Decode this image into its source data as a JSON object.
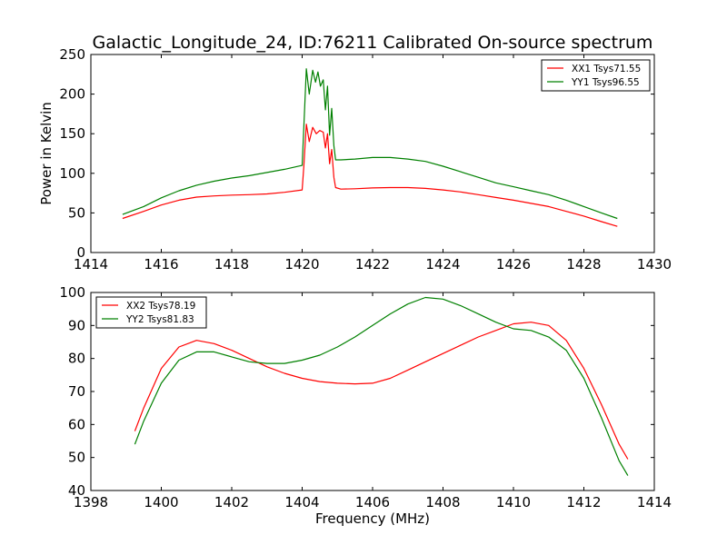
{
  "figure": {
    "title": "Galactic_Longitude_24, ID:76211 Calibrated On-source spectrum",
    "ylabel": "Power in Kelvin",
    "xlabel": "Frequency (MHz)"
  },
  "chart_data": [
    {
      "type": "line",
      "xlabel": "",
      "ylabel": "Power in Kelvin",
      "xlim": [
        1414,
        1430
      ],
      "ylim": [
        0,
        250
      ],
      "xticks": [
        1414,
        1416,
        1418,
        1420,
        1422,
        1424,
        1426,
        1428,
        1430
      ],
      "yticks": [
        0,
        50,
        100,
        150,
        200,
        250
      ],
      "legend_position": "top-right",
      "series": [
        {
          "name": "XX1 Tsys71.55",
          "color": "#ff0000",
          "x": [
            1414.9,
            1415.5,
            1416.0,
            1416.5,
            1417.0,
            1417.5,
            1418.0,
            1418.5,
            1419.0,
            1419.5,
            1420.0,
            1420.05,
            1420.12,
            1420.2,
            1420.3,
            1420.4,
            1420.5,
            1420.6,
            1420.66,
            1420.72,
            1420.78,
            1420.84,
            1420.9,
            1420.95,
            1421.1,
            1421.5,
            1422.0,
            1422.5,
            1423.0,
            1423.5,
            1424.0,
            1424.5,
            1425.0,
            1425.5,
            1426.0,
            1426.5,
            1427.0,
            1427.5,
            1428.0,
            1428.5,
            1428.95
          ],
          "y": [
            43,
            52,
            60,
            66,
            70,
            71.5,
            72.5,
            73,
            74,
            76,
            79,
            110,
            162,
            140,
            158,
            150,
            154,
            152,
            132,
            150,
            112,
            130,
            95,
            82,
            80,
            80.5,
            81.5,
            82,
            82,
            81,
            79,
            76.5,
            73,
            69.5,
            66,
            62,
            58,
            52,
            46,
            39,
            33
          ]
        },
        {
          "name": "YY1 Tsys96.55",
          "color": "#008000",
          "x": [
            1414.9,
            1415.5,
            1416.0,
            1416.5,
            1417.0,
            1417.5,
            1418.0,
            1418.5,
            1419.0,
            1419.5,
            1420.0,
            1420.05,
            1420.12,
            1420.2,
            1420.3,
            1420.38,
            1420.45,
            1420.52,
            1420.6,
            1420.66,
            1420.72,
            1420.78,
            1420.84,
            1420.9,
            1420.95,
            1421.1,
            1421.5,
            1422.0,
            1422.5,
            1423.0,
            1423.5,
            1424.0,
            1424.5,
            1425.0,
            1425.5,
            1426.0,
            1426.5,
            1427.0,
            1427.5,
            1428.0,
            1428.5,
            1428.95
          ],
          "y": [
            48,
            58,
            69,
            78,
            85,
            90,
            94,
            97,
            101,
            105,
            110,
            160,
            232,
            200,
            230,
            215,
            228,
            210,
            218,
            180,
            210,
            148,
            182,
            135,
            117,
            117,
            118,
            120,
            120,
            118,
            115,
            109,
            102,
            95,
            88,
            83,
            78,
            73,
            66,
            58,
            50,
            43
          ]
        }
      ]
    },
    {
      "type": "line",
      "xlabel": "Frequency (MHz)",
      "ylabel": "",
      "xlim": [
        1398,
        1414
      ],
      "ylim": [
        40,
        100
      ],
      "xticks": [
        1398,
        1400,
        1402,
        1404,
        1406,
        1408,
        1410,
        1412,
        1414
      ],
      "yticks": [
        40,
        50,
        60,
        70,
        80,
        90,
        100
      ],
      "legend_position": "top-left",
      "series": [
        {
          "name": "XX2 Tsys78.19",
          "color": "#ff0000",
          "x": [
            1399.25,
            1399.5,
            1400.0,
            1400.5,
            1401.0,
            1401.5,
            1402.0,
            1402.5,
            1403.0,
            1403.5,
            1404.0,
            1404.5,
            1405.0,
            1405.5,
            1406.0,
            1406.5,
            1407.0,
            1407.5,
            1408.0,
            1408.5,
            1409.0,
            1409.5,
            1410.0,
            1410.5,
            1411.0,
            1411.5,
            1412.0,
            1412.5,
            1413.0,
            1413.25
          ],
          "y": [
            58,
            65,
            77,
            83.5,
            85.5,
            84.5,
            82.5,
            80,
            77.5,
            75.5,
            74,
            73,
            72.5,
            72.3,
            72.5,
            74,
            76.5,
            79,
            81.5,
            84,
            86.5,
            88.5,
            90.5,
            91,
            90,
            85.5,
            77,
            66,
            54,
            49.5
          ]
        },
        {
          "name": "YY2 Tsys81.83",
          "color": "#008000",
          "x": [
            1399.25,
            1399.5,
            1400.0,
            1400.5,
            1401.0,
            1401.5,
            1402.0,
            1402.5,
            1403.0,
            1403.5,
            1404.0,
            1404.5,
            1405.0,
            1405.5,
            1406.0,
            1406.5,
            1407.0,
            1407.5,
            1408.0,
            1408.5,
            1409.0,
            1409.5,
            1410.0,
            1410.5,
            1411.0,
            1411.5,
            1412.0,
            1412.5,
            1413.0,
            1413.25
          ],
          "y": [
            54,
            61,
            72.5,
            79.5,
            82,
            82,
            80.5,
            79,
            78.5,
            78.5,
            79.5,
            81,
            83.5,
            86.5,
            90,
            93.5,
            96.5,
            98.5,
            98,
            96,
            93.5,
            91,
            89,
            88.5,
            86.5,
            82.5,
            74,
            62,
            49,
            44.5
          ]
        }
      ]
    }
  ]
}
